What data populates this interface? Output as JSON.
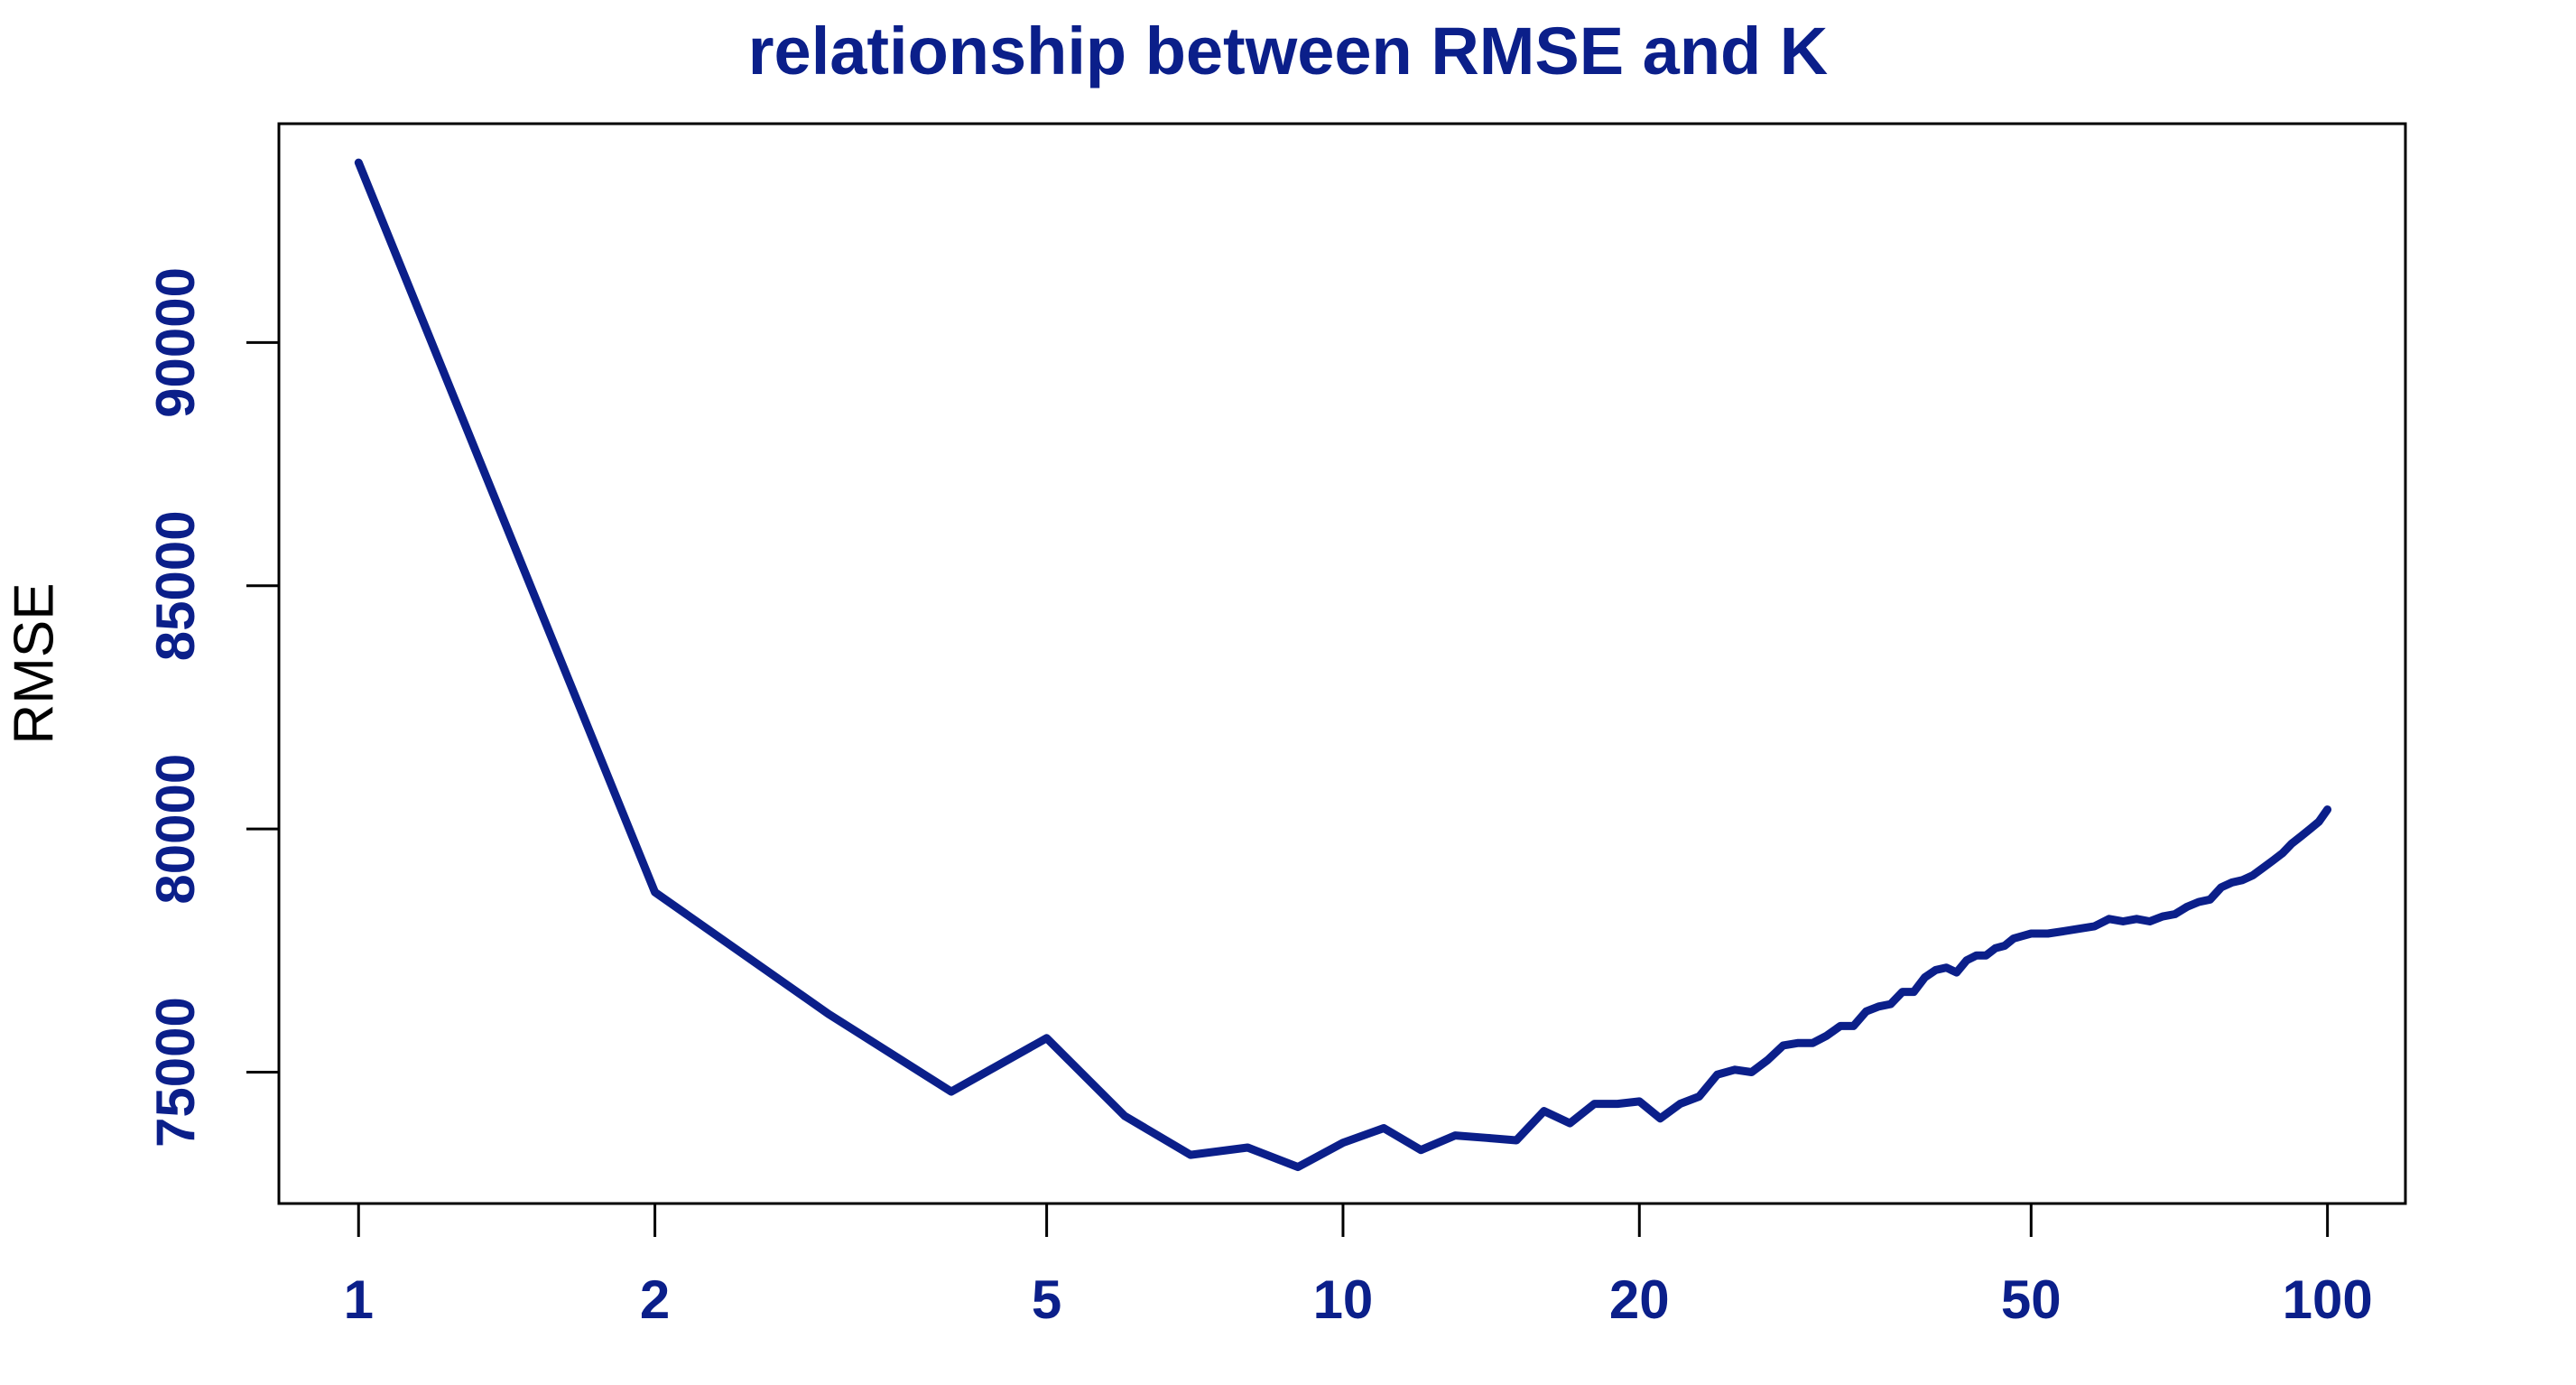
{
  "colors": {
    "accent": "#0b1f8a",
    "axis": "#000000",
    "background": "#ffffff"
  },
  "chart_data": {
    "type": "line",
    "title": "relationship between RMSE and K",
    "xlabel": "",
    "ylabel": "RMSE",
    "x_scale": "log",
    "xlim": [
      0.83,
      120
    ],
    "ylim": [
      72300,
      94500
    ],
    "x_ticks": [
      1,
      2,
      5,
      10,
      20,
      50,
      100
    ],
    "y_ticks": [
      75000,
      80000,
      85000,
      90000
    ],
    "legend": "none",
    "grid": false,
    "series": [
      {
        "x": [
          1,
          2,
          3,
          4,
          5,
          6,
          7,
          8,
          9,
          10,
          11,
          12,
          13,
          14,
          15,
          16,
          17,
          18,
          19,
          20,
          21,
          22,
          23,
          24,
          25,
          26,
          27,
          28,
          29,
          30,
          31,
          32,
          33,
          34,
          35,
          36,
          37,
          38,
          39,
          40,
          41,
          42,
          43,
          44,
          45,
          46,
          47,
          48,
          49,
          50,
          52,
          54,
          56,
          58,
          60,
          62,
          64,
          66,
          68,
          70,
          72,
          74,
          76,
          78,
          80,
          82,
          84,
          86,
          88,
          90,
          92,
          94,
          96,
          98,
          100
        ],
        "values": [
          93700,
          78700,
          76200,
          74600,
          75700,
          74100,
          73300,
          73450,
          73050,
          73550,
          73850,
          73400,
          73700,
          73650,
          73600,
          74200,
          73950,
          74350,
          74350,
          74400,
          74050,
          74350,
          74500,
          74950,
          75050,
          75000,
          75250,
          75550,
          75600,
          75600,
          75750,
          75950,
          75950,
          76250,
          76350,
          76400,
          76650,
          76650,
          76950,
          77100,
          77150,
          77050,
          77300,
          77400,
          77400,
          77550,
          77600,
          77750,
          77800,
          77850,
          77850,
          77900,
          77950,
          78000,
          78150,
          78100,
          78150,
          78100,
          78200,
          78250,
          78400,
          78500,
          78550,
          78800,
          78900,
          78950,
          79050,
          79200,
          79350,
          79500,
          79700,
          79850,
          80000,
          80150,
          80400
        ]
      }
    ]
  }
}
